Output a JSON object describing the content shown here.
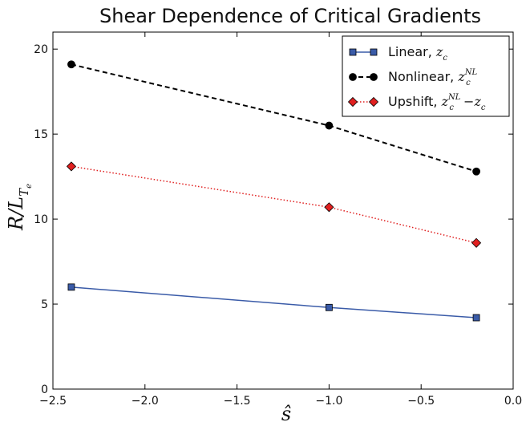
{
  "chart_data": {
    "type": "line",
    "title": "Shear Dependence of Critical Gradients",
    "xlabel": "ŝ",
    "ylabel": "R/L_{T_e}",
    "xlim": [
      -2.5,
      0.0
    ],
    "ylim": [
      0,
      21
    ],
    "xticks": [
      -2.5,
      -2.0,
      -1.5,
      -1.0,
      -0.5,
      0.0
    ],
    "xtick_labels": [
      "−2.5",
      "−2.0",
      "−1.5",
      "−1.0",
      "−0.5",
      "0.0"
    ],
    "yticks": [
      0,
      5,
      10,
      15,
      20
    ],
    "ytick_labels": [
      "0",
      "5",
      "10",
      "15",
      "20"
    ],
    "grid": false,
    "legend_position": "top-right",
    "x": [
      -2.4,
      -1.0,
      -0.2
    ],
    "series": [
      {
        "name": "Linear, z_c",
        "values": [
          6.0,
          4.8,
          4.2
        ],
        "color": "#3a5ba8",
        "marker": "square",
        "linestyle": "solid"
      },
      {
        "name": "Nonlinear, z_c^{NL}",
        "values": [
          19.1,
          15.5,
          12.8
        ],
        "color": "#000000",
        "marker": "circle",
        "linestyle": "dashed"
      },
      {
        "name": "Upshift, z_c^{NL} − z_c",
        "values": [
          13.1,
          10.7,
          8.6
        ],
        "color": "#e02020",
        "marker": "diamond",
        "linestyle": "dotted"
      }
    ],
    "legend_labels": [
      {
        "text": "Linear, ",
        "math": "z",
        "sub": "c",
        "sup": "",
        "tail": ""
      },
      {
        "text": "Nonlinear, ",
        "math": "z",
        "sub": "c",
        "sup": "NL",
        "tail": ""
      },
      {
        "text": "Upshift, ",
        "math": "z",
        "sub": "c",
        "sup": "NL",
        "tail": "−z"
      }
    ]
  }
}
